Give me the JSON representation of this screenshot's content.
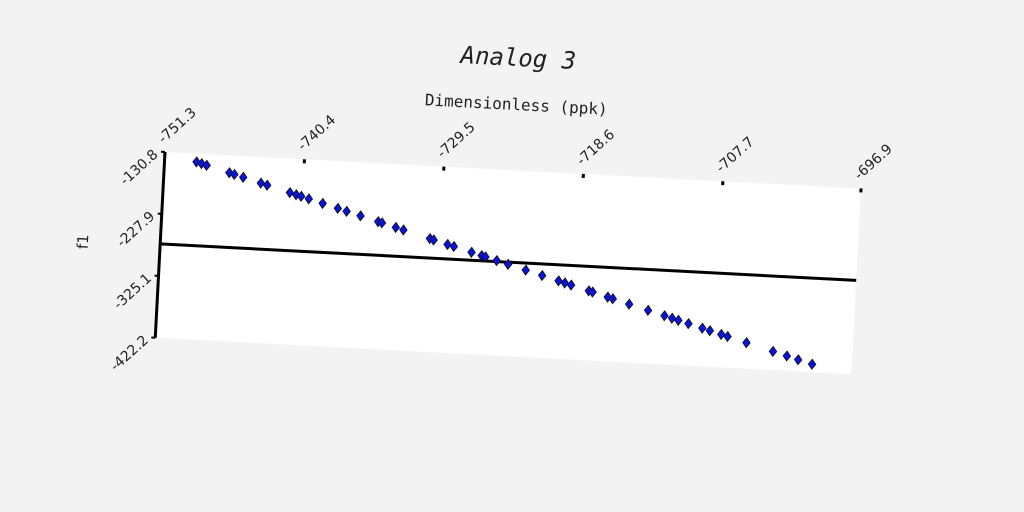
{
  "chart_data": {
    "type": "scatter",
    "title": "Analog 3",
    "xlabel": "Dimensionless (ppk)",
    "ylabel": "f1",
    "x": [
      -748.8,
      -748.4,
      -748.0,
      -746.2,
      -745.8,
      -745.1,
      -743.7,
      -743.2,
      -741.4,
      -740.9,
      -740.5,
      -739.9,
      -738.8,
      -737.6,
      -736.9,
      -735.8,
      -734.4,
      -734.1,
      -733.0,
      -732.4,
      -730.3,
      -730.0,
      -728.9,
      -728.4,
      -727.0,
      -726.2,
      -725.9,
      -725.0,
      -724.1,
      -722.7,
      -721.4,
      -720.1,
      -719.6,
      -719.1,
      -717.7,
      -717.4,
      -716.2,
      -715.8,
      -714.5,
      -713.0,
      -711.7,
      -711.1,
      -710.6,
      -709.8,
      -708.7,
      -708.1,
      -707.2,
      -706.7,
      -705.2,
      -703.1,
      -702.0,
      -701.1,
      -700.0
    ],
    "series": [
      {
        "color": "#0a14d8",
        "values": [
          -143.8,
          -146.0,
          -148.2,
          -158.0,
          -160.2,
          -164.0,
          -171.6,
          -174.3,
          -184.1,
          -186.9,
          -189.0,
          -192.3,
          -198.3,
          -204.8,
          -208.7,
          -214.7,
          -222.3,
          -223.9,
          -229.9,
          -233.2,
          -244.6,
          -246.3,
          -252.3,
          -255.0,
          -262.6,
          -267.0,
          -268.6,
          -273.5,
          -278.4,
          -286.0,
          -293.1,
          -300.2,
          -302.9,
          -305.7,
          -313.3,
          -314.9,
          -321.5,
          -323.7,
          -330.8,
          -339.0,
          -346.0,
          -349.3,
          -352.0,
          -356.4,
          -362.4,
          -365.7,
          -370.6,
          -373.3,
          -381.5,
          -393.0,
          -399.0,
          -403.9,
          -409.8
        ]
      }
    ],
    "xlim": [
      -751.3,
      -696.9
    ],
    "xticks": [
      -751.3,
      -740.4,
      -729.5,
      -718.6,
      -707.7,
      -696.9
    ],
    "ylim": [
      -422.2,
      -130.8
    ],
    "yticks": [
      -130.8,
      -227.9,
      -325.1,
      -422.2
    ],
    "hline": -275,
    "grid": false
  }
}
